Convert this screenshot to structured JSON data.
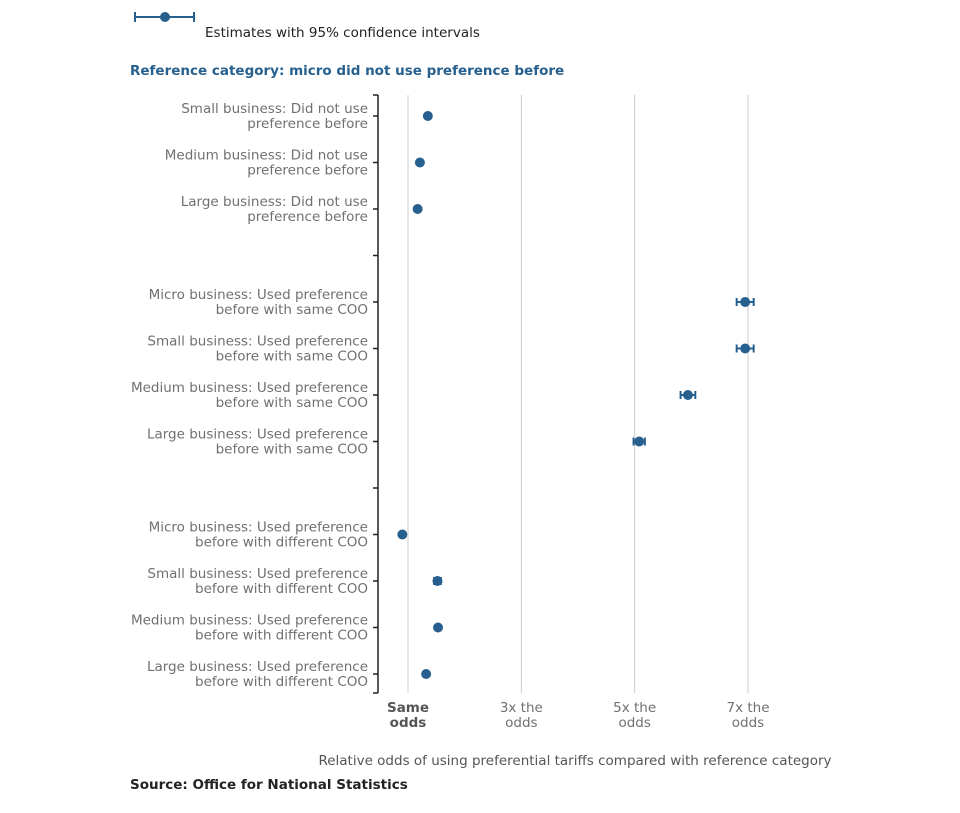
{
  "legend": {
    "label": "Estimates with 95% confidence intervals"
  },
  "reference": {
    "text": "Reference category: micro did not use preference before"
  },
  "source": {
    "text": "Source: Office for National Statistics"
  },
  "colors": {
    "marker": "#27608e",
    "reference_text": "#27608e",
    "grid": "#cccccc",
    "axis": "#222222"
  },
  "chart_data": {
    "type": "scatter",
    "orientation": "horizontal",
    "xlabel": "Relative odds of using preferential tariffs compared with reference category",
    "xlim": [
      0.75,
      7.5
    ],
    "xticks": [
      {
        "value": 1,
        "label": [
          "Same",
          "odds"
        ],
        "bold": true
      },
      {
        "value": 3,
        "label": [
          "3x the",
          "odds"
        ],
        "bold": false
      },
      {
        "value": 5,
        "label": [
          "5x the",
          "odds"
        ],
        "bold": false
      },
      {
        "value": 7,
        "label": [
          "7x the",
          "odds"
        ],
        "bold": false
      }
    ],
    "grid": true,
    "legend_position": "top-left",
    "groups": [
      {
        "items": [
          {
            "label": [
              "Small business: Did not use",
              "preference before"
            ],
            "estimate": 1.35,
            "ci": [
              1.32,
              1.38
            ]
          },
          {
            "label": [
              "Medium business: Did not use",
              "preference before"
            ],
            "estimate": 1.21,
            "ci": [
              1.18,
              1.24
            ]
          },
          {
            "label": [
              "Large business: Did not use",
              "preference before"
            ],
            "estimate": 1.17,
            "ci": [
              1.14,
              1.2
            ]
          }
        ]
      },
      {
        "items": [
          {
            "label": [
              "Micro business: Used preference",
              "before with same COO"
            ],
            "estimate": 6.95,
            "ci": [
              6.8,
              7.1
            ]
          },
          {
            "label": [
              "Small business: Used preference",
              "before with same COO"
            ],
            "estimate": 6.95,
            "ci": [
              6.8,
              7.1
            ]
          },
          {
            "label": [
              "Medium business: Used preference",
              "before with same COO"
            ],
            "estimate": 5.94,
            "ci": [
              5.81,
              6.07
            ]
          },
          {
            "label": [
              "Large business: Used preference",
              "before with same COO"
            ],
            "estimate": 5.08,
            "ci": [
              4.98,
              5.18
            ]
          }
        ]
      },
      {
        "items": [
          {
            "label": [
              "Micro business: Used preference",
              "before with different COO"
            ],
            "estimate": 0.9,
            "ci": [
              0.88,
              0.92
            ]
          },
          {
            "label": [
              "Small business: Used preference",
              "before with different COO"
            ],
            "estimate": 1.52,
            "ci": [
              1.46,
              1.58
            ]
          },
          {
            "label": [
              "Medium business: Used preference",
              "before with different COO"
            ],
            "estimate": 1.53,
            "ci": [
              1.5,
              1.56
            ]
          },
          {
            "label": [
              "Large business: Used preference",
              "before with different COO"
            ],
            "estimate": 1.32,
            "ci": [
              1.29,
              1.35
            ]
          }
        ]
      }
    ]
  }
}
